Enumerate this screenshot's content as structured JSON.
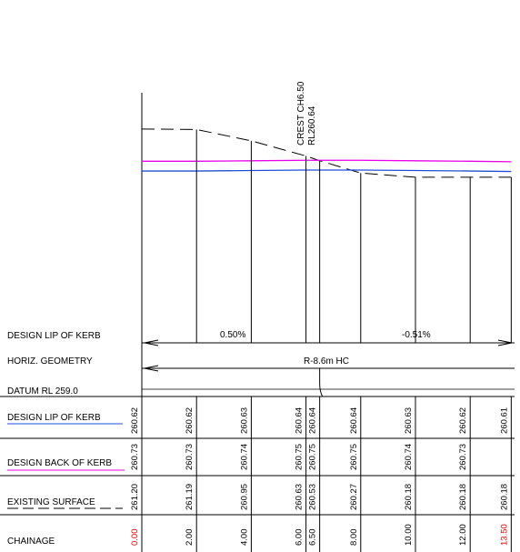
{
  "crest": {
    "line1": "CREST CH6.50",
    "line2": "RL260.64"
  },
  "rows": {
    "design_lip": "DESIGN LIP OF KERB",
    "horiz": "HORIZ. GEOMETRY",
    "datum": "DATUM RL 259.0",
    "lip_values": "DESIGN LIP OF KERB",
    "back_values": "DESIGN BACK OF KERB",
    "existing": "EXISTING SURFACE",
    "chainage": "CHAINAGE"
  },
  "grades": {
    "left": "0.50%",
    "right": "-0.51%"
  },
  "horiz_curve": "R-8.6m HC",
  "colors": {
    "design_lip": "#e800e8",
    "design_back": "#1f4fd8",
    "existing": "#000000",
    "chainage_red": "#e00000",
    "underline_lip": "#1f4fd8",
    "underline_back": "#e800e8"
  },
  "chart_data": {
    "type": "line",
    "xlabel": "CHAINAGE",
    "ylabel": "",
    "datum": 259.0,
    "stations": [
      {
        "chainage": "0.00",
        "lip": "260.62",
        "back": "260.73",
        "existing": "261.20",
        "red": true
      },
      {
        "chainage": "2.00",
        "lip": "260.62",
        "back": "260.73",
        "existing": "261.19",
        "red": false
      },
      {
        "chainage": "4.00",
        "lip": "260.63",
        "back": "260.74",
        "existing": "260.95",
        "red": false
      },
      {
        "chainage": "6.00",
        "lip": "260.64",
        "back": "260.75",
        "existing": "260.63",
        "red": false
      },
      {
        "chainage": "6.50",
        "lip": "260.64",
        "back": "260.75",
        "existing": "260.53",
        "red": false
      },
      {
        "chainage": "8.00",
        "lip": "260.64",
        "back": "260.75",
        "existing": "260.27",
        "red": false
      },
      {
        "chainage": "10.00",
        "lip": "260.63",
        "back": "260.74",
        "existing": "260.18",
        "red": false
      },
      {
        "chainage": "12.00",
        "lip": "260.62",
        "back": "260.73",
        "existing": "260.18",
        "red": false
      },
      {
        "chainage": "13.50",
        "lip": "260.61",
        "back": "",
        "existing": "260.18",
        "red": true
      }
    ],
    "series": [
      {
        "name": "DESIGN LIP OF KERB",
        "style": "solid",
        "color": "#e800e8"
      },
      {
        "name": "DESIGN BACK OF KERB",
        "style": "solid",
        "color": "#1f4fd8"
      },
      {
        "name": "EXISTING SURFACE",
        "style": "dashed",
        "color": "#000000"
      }
    ]
  }
}
